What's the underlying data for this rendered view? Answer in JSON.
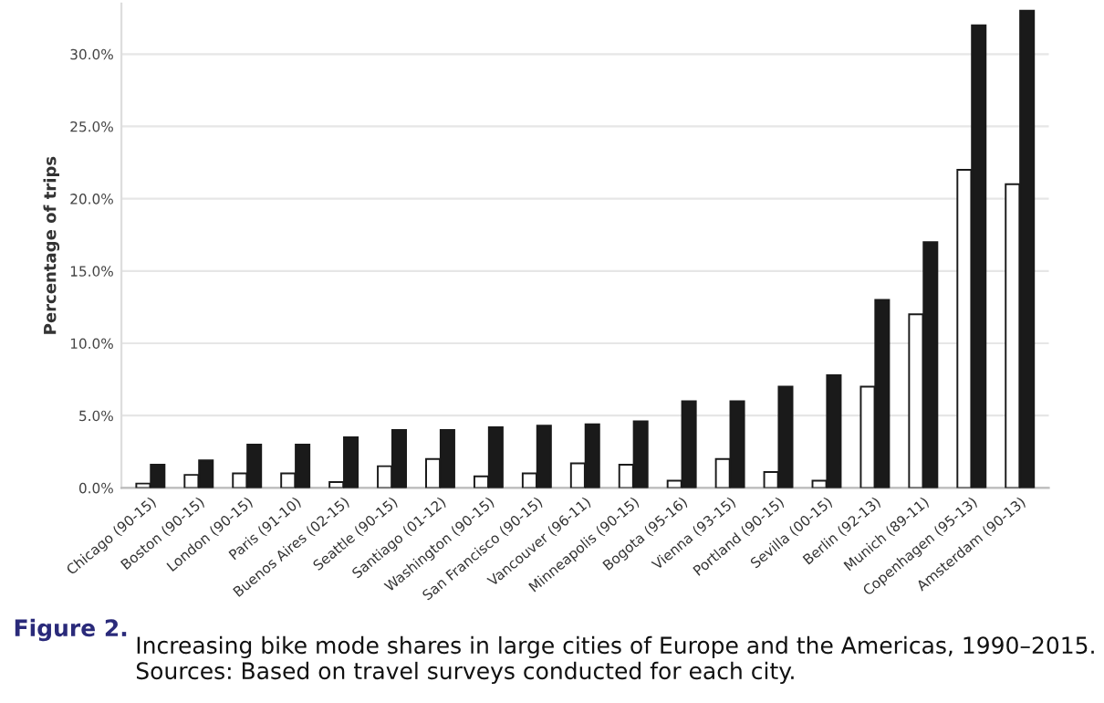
{
  "chart_data": {
    "type": "bar",
    "ylabel": "Percentage of trips",
    "categories": [
      "Chicago (90-15)",
      "Boston (90-15)",
      "London (90-15)",
      "Paris (91-10)",
      "Buenos Aires (02-15)",
      "Seattle (90-15)",
      "Santiago (01-12)",
      "Washington (90-15)",
      "San Francisco (90-15)",
      "Vancouver (96-11)",
      "Minneapolis (90-15)",
      "Bogota (95-16)",
      "Vienna (93-15)",
      "Portland (90-15)",
      "Sevilla (00-15)",
      "Berlin (92-13)",
      "Munich (89-11)",
      "Copenhagen (95-13)",
      "Amsterdam (90-13)"
    ],
    "series": [
      {
        "color": "#ffffff",
        "values": [
          0.3,
          0.9,
          1.0,
          1.0,
          0.4,
          1.5,
          2.0,
          0.8,
          1.0,
          1.7,
          1.6,
          0.5,
          2.0,
          1.1,
          0.5,
          7.0,
          12.0,
          22.0,
          21.0
        ]
      },
      {
        "color": "#1a1a1a",
        "values": [
          1.6,
          1.9,
          3.0,
          3.0,
          3.5,
          4.0,
          4.0,
          4.2,
          4.3,
          4.4,
          4.6,
          6.0,
          6.0,
          7.0,
          7.8,
          13.0,
          17.0,
          32.0,
          33.0
        ]
      }
    ],
    "ylim": [
      0,
      33.5
    ],
    "yticks": [
      {
        "value": 0,
        "label": "0.0%"
      },
      {
        "value": 5,
        "label": "5.0%"
      },
      {
        "value": 10,
        "label": "10.0%"
      },
      {
        "value": 15,
        "label": "15.0%"
      },
      {
        "value": 20,
        "label": "20.0%"
      },
      {
        "value": 25,
        "label": "25.0%"
      },
      {
        "value": 30,
        "label": "30.0%"
      }
    ],
    "grid": "y",
    "legend": false,
    "annotations": [
      "Figure 2.",
      "Increasing bike mode shares in large cities of Europe and the Americas, 1990–2015. Sources: Based on travel surveys conducted for each city."
    ]
  }
}
